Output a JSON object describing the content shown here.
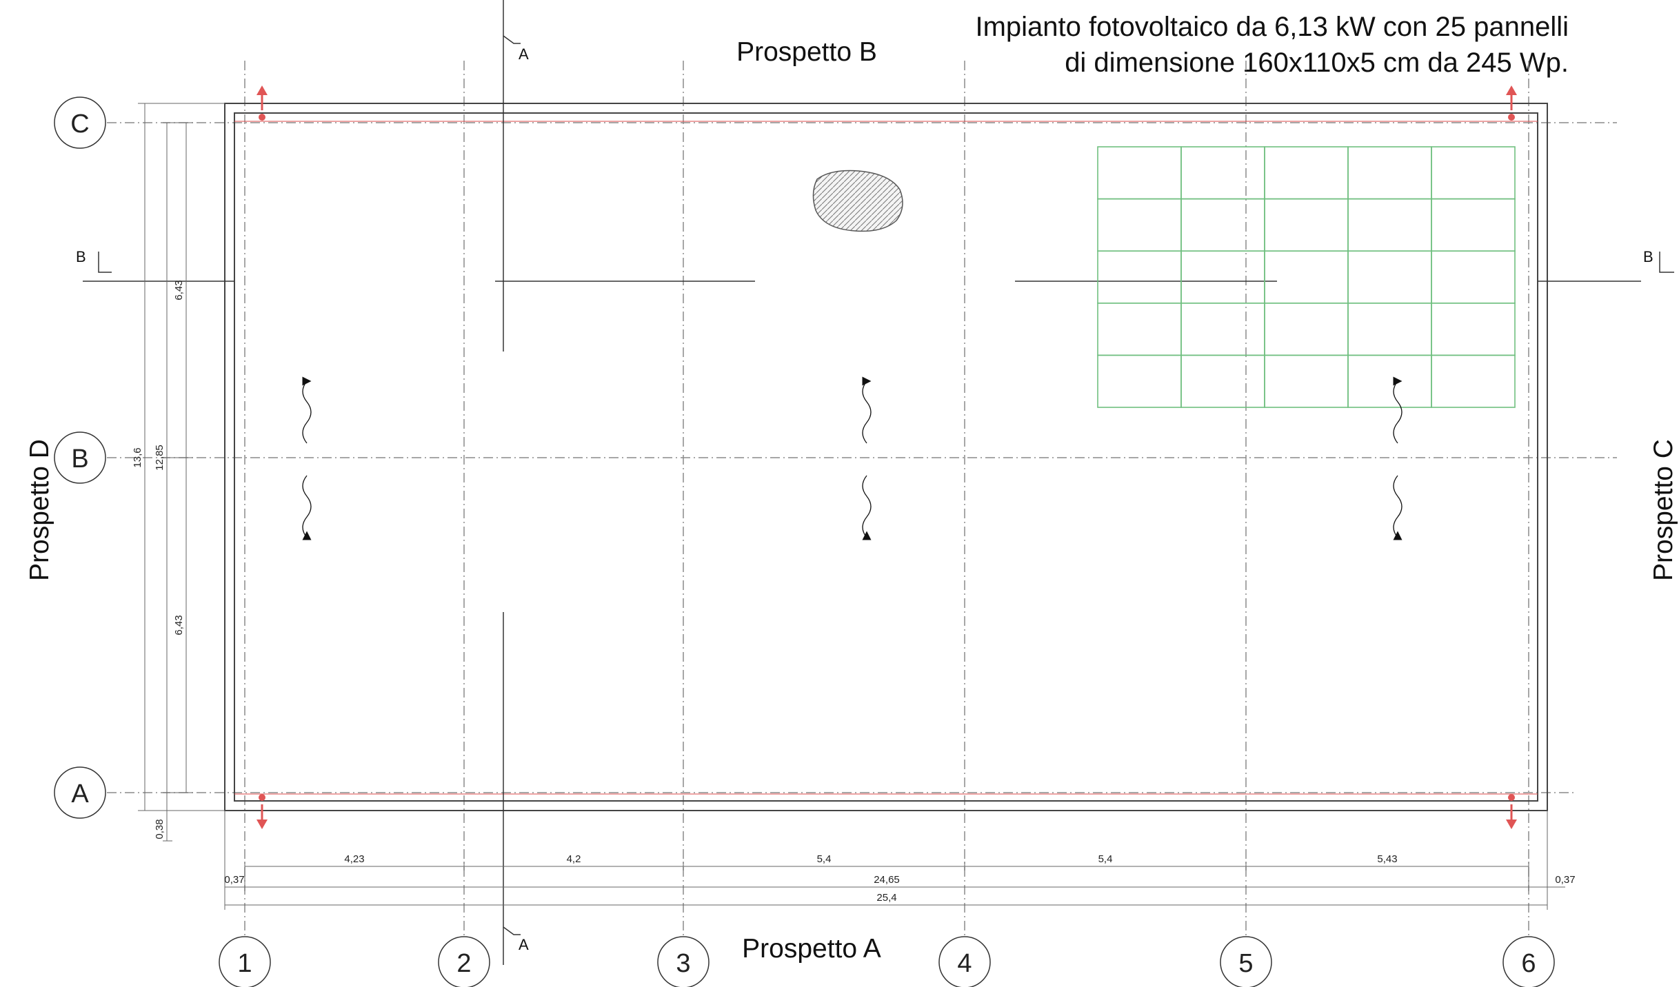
{
  "title": {
    "line1": "Impianto fotovoltaico da 6,13 kW con 25 pannelli",
    "line2": "di dimensione 160x110x5 cm da 245 Wp."
  },
  "elevations": {
    "a": "Prospetto A",
    "b": "Prospetto B",
    "c": "Prospetto C",
    "d": "Prospetto D"
  },
  "grid_rows": [
    "C",
    "B",
    "A"
  ],
  "grid_cols": [
    "1",
    "2",
    "3",
    "4",
    "5",
    "6"
  ],
  "section_marks": {
    "a": "A",
    "b": "B"
  },
  "dimensions": {
    "bays": [
      "4,23",
      "4,2",
      "5,4",
      "5,4",
      "5,43"
    ],
    "overhang_left": "0,37",
    "overhang_right": "0,37",
    "inner_total": "24,65",
    "outer_total": "25,4",
    "v_half_top": "6,43",
    "v_half_bottom": "6,43",
    "v_inner": "12,85",
    "v_outer": "13,6",
    "v_bottom": "0,38"
  },
  "pv_panels": {
    "rows": 5,
    "cols": 5,
    "color": "#6fbf7f"
  },
  "colors": {
    "downspout": "#e05555",
    "line": "#444444",
    "gridline": "#8a8a8a"
  }
}
